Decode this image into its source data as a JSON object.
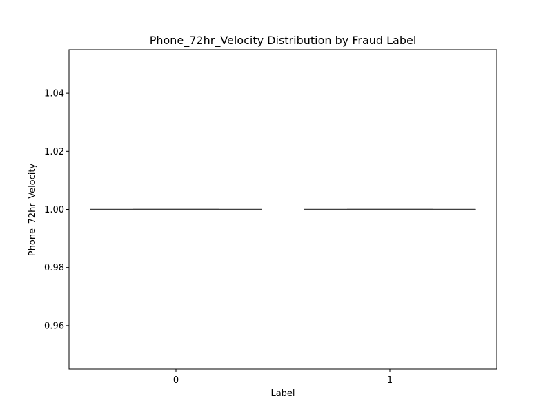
{
  "chart_data": {
    "type": "box",
    "title": "Phone_72hr_Velocity Distribution by Fraud Label",
    "xlabel": "Label",
    "ylabel": "Phone_72hr_Velocity",
    "categories": [
      "0",
      "1"
    ],
    "ylim": [
      0.945,
      1.055
    ],
    "yticks": [
      0.96,
      0.98,
      1.0,
      1.02,
      1.04
    ],
    "ytick_labels": [
      "0.96",
      "0.98",
      "1.00",
      "1.02",
      "1.04"
    ],
    "grid": false,
    "boxes": [
      {
        "category": "0",
        "whisker_low": 1.0,
        "q1": 1.0,
        "median": 1.0,
        "q3": 1.0,
        "whisker_high": 1.0
      },
      {
        "category": "1",
        "whisker_low": 1.0,
        "q1": 1.0,
        "median": 1.0,
        "q3": 1.0,
        "whisker_high": 1.0
      }
    ],
    "line_color": "#3f3f3f"
  }
}
